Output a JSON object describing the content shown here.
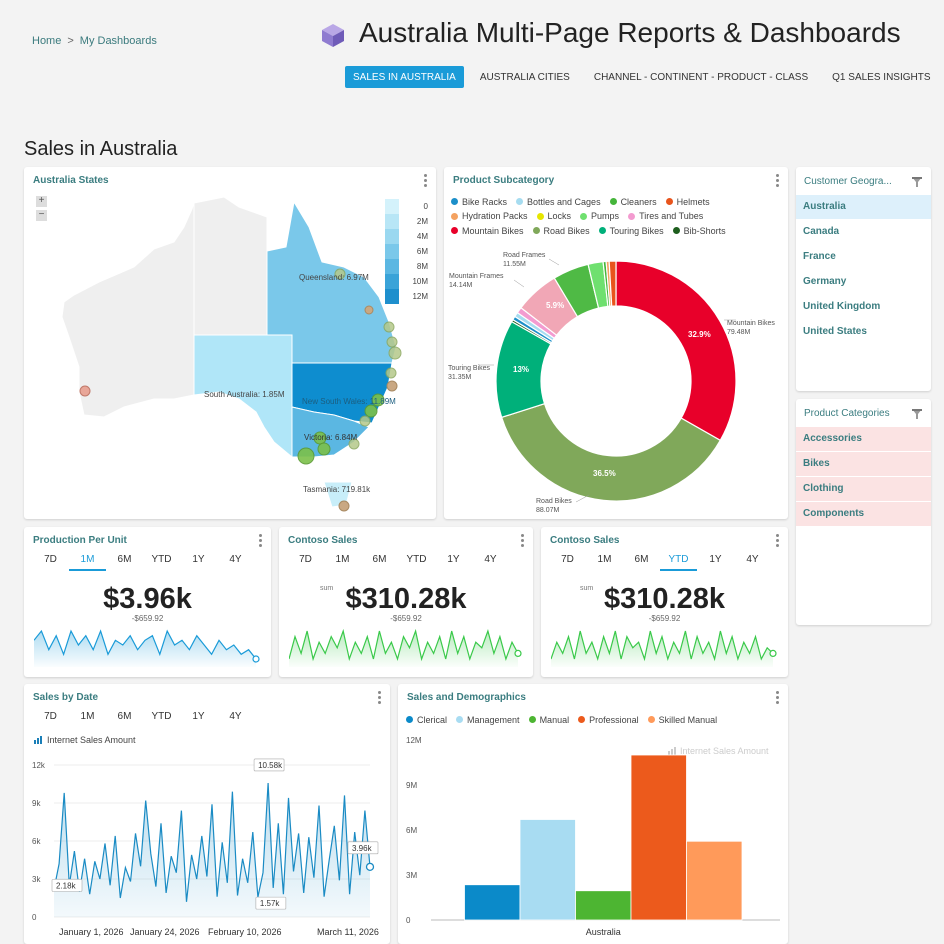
{
  "breadcrumb": {
    "home": "Home",
    "sep": ">",
    "current": "My Dashboards"
  },
  "app": {
    "title": "Australia Multi-Page Reports & Dashboards",
    "logo_icon": "cube-icon"
  },
  "tabs": [
    {
      "label": "SALES IN AUSTRALIA",
      "active": true
    },
    {
      "label": "AUSTRALIA CITIES",
      "active": false
    },
    {
      "label": "CHANNEL - CONTINENT - PRODUCT - CLASS",
      "active": false
    },
    {
      "label": "Q1 SALES INSIGHTS",
      "active": false
    }
  ],
  "page": {
    "title": "Sales in Australia"
  },
  "map_card": {
    "title": "Australia States",
    "zoom_in": "+",
    "zoom_out": "−",
    "scale_labels": [
      "0",
      "2M",
      "4M",
      "6M",
      "8M",
      "10M",
      "12M"
    ],
    "scale_colors": [
      "#d4f2fb",
      "#b8e6f6",
      "#9ad8f0",
      "#7ac8ea",
      "#5bb7e2",
      "#3aa3d8",
      "#1e8fcd"
    ],
    "state_labels": [
      "Queensland: 6.97M",
      "South Australia: 1.85M",
      "New South Wales: 11.89M",
      "Victoria: 6.84M",
      "Tasmania: 719.81k"
    ]
  },
  "subcategory_card": {
    "title": "Product Subcategory",
    "legend": [
      {
        "name": "Bike Racks",
        "color": "#1c8fc9"
      },
      {
        "name": "Bottles and Cages",
        "color": "#a6dcf0"
      },
      {
        "name": "Cleaners",
        "color": "#45b53a"
      },
      {
        "name": "Helmets",
        "color": "#e8541c"
      },
      {
        "name": "Hydration Packs",
        "color": "#f4a261"
      },
      {
        "name": "Locks",
        "color": "#e6e600"
      },
      {
        "name": "Pumps",
        "color": "#6fe06f"
      },
      {
        "name": "Tires and Tubes",
        "color": "#f39bd0"
      },
      {
        "name": "Mountain Bikes",
        "color": "#e8002a"
      },
      {
        "name": "Road Bikes",
        "color": "#80a85a"
      },
      {
        "name": "Touring Bikes",
        "color": "#00b07a"
      },
      {
        "name": "Bib-Shorts",
        "color": "#1e5e1e"
      }
    ],
    "callouts": [
      {
        "name": "Road Frames",
        "value": "11.55M"
      },
      {
        "name": "Mountain Frames",
        "value": "14.14M"
      },
      {
        "name": "Mountain Bikes",
        "value": "79.48M"
      },
      {
        "name": "Touring Bikes",
        "value": "31.35M"
      },
      {
        "name": "Road Bikes",
        "value": "88.07M"
      }
    ],
    "slice_labels": [
      "32.9%",
      "36.5%",
      "13%",
      "5.9%"
    ]
  },
  "kpi_cards": [
    {
      "title": "Production Per Unit",
      "periods": [
        "7D",
        "1M",
        "6M",
        "YTD",
        "1Y",
        "4Y"
      ],
      "active_period": "1M",
      "sum_label": "",
      "value": "$3.96k",
      "delta": "-$659.92",
      "color": "#1a9bd8"
    },
    {
      "title": "Contoso Sales",
      "periods": [
        "7D",
        "1M",
        "6M",
        "YTD",
        "1Y",
        "4Y"
      ],
      "active_period": "",
      "sum_label": "sum",
      "value": "$310.28k",
      "delta": "-$659.92",
      "color": "#3ac94a"
    },
    {
      "title": "Contoso Sales",
      "periods": [
        "7D",
        "1M",
        "6M",
        "YTD",
        "1Y",
        "4Y"
      ],
      "active_period": "YTD",
      "sum_label": "sum",
      "value": "$310.28k",
      "delta": "-$659.92",
      "color": "#3ac94a"
    }
  ],
  "sales_by_date": {
    "title": "Sales by Date",
    "periods": [
      "7D",
      "1M",
      "6M",
      "YTD",
      "1Y",
      "4Y"
    ],
    "legend": "Internet Sales Amount",
    "callouts": [
      "10.58k",
      "2.18k",
      "1.57k",
      "3.96k"
    ]
  },
  "demographics": {
    "title": "Sales and Demographics",
    "watermark": "Internet Sales Amount"
  },
  "geo_filter": {
    "title": "Customer Geogra...",
    "items": [
      {
        "label": "Australia",
        "selected": true
      },
      {
        "label": "Canada",
        "selected": false
      },
      {
        "label": "France",
        "selected": false
      },
      {
        "label": "Germany",
        "selected": false
      },
      {
        "label": "United Kingdom",
        "selected": false
      },
      {
        "label": "United States",
        "selected": false
      }
    ]
  },
  "category_filter": {
    "title": "Product Categories",
    "items": [
      {
        "label": "Accessories",
        "selected": true
      },
      {
        "label": "Bikes",
        "selected": true
      },
      {
        "label": "Clothing",
        "selected": true
      },
      {
        "label": "Components",
        "selected": true
      }
    ]
  },
  "chart_data": [
    {
      "type": "line",
      "title": "Sales by Date",
      "series": [
        {
          "name": "Internet Sales Amount",
          "values": [
            2180,
            4200,
            9800,
            2500,
            5200,
            2000,
            4600,
            1800,
            4400,
            3000,
            5800,
            2500,
            6400,
            1500,
            3900,
            2800,
            6600,
            4000,
            9200,
            5000,
            2400,
            7400,
            1900,
            4800,
            3500,
            8400,
            1200,
            4900,
            3000,
            6400,
            3200,
            8900,
            1600,
            5900,
            2700,
            9900,
            1700,
            4600,
            2700,
            6700,
            1570,
            3500,
            10580,
            2300,
            7400,
            1800,
            9400,
            3600,
            6600,
            1900,
            6300,
            3100,
            8800,
            1600,
            4500,
            7200,
            2900,
            9600,
            1800,
            6700,
            3300,
            8400,
            3960
          ]
        }
      ],
      "x_tick_labels": [
        "January 1, 2026",
        "January 24, 2026",
        "February 10, 2026",
        "March 11, 2026"
      ],
      "y_tick_labels": [
        "0",
        "3k",
        "6k",
        "9k",
        "12k"
      ],
      "ylim": [
        0,
        12000
      ]
    },
    {
      "type": "bar",
      "title": "Sales and Demographics",
      "categories": [
        "Australia"
      ],
      "series": [
        {
          "name": "Clerical",
          "values": [
            2350000
          ],
          "color": "#0b8ac9"
        },
        {
          "name": "Management",
          "values": [
            6700000
          ],
          "color": "#a8dcf2"
        },
        {
          "name": "Manual",
          "values": [
            1950000
          ],
          "color": "#4db532"
        },
        {
          "name": "Professional",
          "values": [
            11000000
          ],
          "color": "#ec5a1c"
        },
        {
          "name": "Skilled Manual",
          "values": [
            5250000
          ],
          "color": "#ff9a5a"
        }
      ],
      "y_tick_labels": [
        "0",
        "3M",
        "6M",
        "9M",
        "12M"
      ],
      "ylim": [
        0,
        12000000
      ]
    },
    {
      "type": "pie",
      "title": "Product Subcategory",
      "slices": [
        {
          "name": "Mountain Bikes",
          "value": 32.9,
          "color": "#e8002a"
        },
        {
          "name": "Road Bikes",
          "value": 36.5,
          "color": "#80a85a"
        },
        {
          "name": "Touring Bikes",
          "value": 13.0,
          "color": "#00b07a"
        },
        {
          "name": "Bib-Shorts",
          "value": 0.3,
          "color": "#1e5e1e"
        },
        {
          "name": "Bike Racks",
          "value": 0.5,
          "color": "#1c8fc9"
        },
        {
          "name": "Bottles and Cages",
          "value": 0.6,
          "color": "#a6dcf0"
        },
        {
          "name": "Tires and Tubes",
          "value": 0.8,
          "color": "#f39bd0"
        },
        {
          "name": "Mountain Frames",
          "value": 5.9,
          "color": "#f1a7b6"
        },
        {
          "name": "Road Frames",
          "value": 4.8,
          "color": "#4fba45"
        },
        {
          "name": "Pumps",
          "value": 2.0,
          "color": "#6fe06f"
        },
        {
          "name": "Cleaners",
          "value": 0.4,
          "color": "#45b53a"
        },
        {
          "name": "Hydration Packs",
          "value": 0.4,
          "color": "#f4a261"
        },
        {
          "name": "Helmets",
          "value": 0.9,
          "color": "#e8541c"
        }
      ]
    },
    {
      "type": "line",
      "title": "Production Per Unit",
      "values": [
        5,
        7,
        3,
        6,
        2,
        7,
        4,
        6,
        3,
        7,
        2,
        5,
        4,
        6,
        3,
        5,
        6,
        2,
        7,
        4,
        5,
        3,
        6,
        4,
        2,
        5,
        3,
        4,
        2,
        3,
        1
      ]
    },
    {
      "type": "line",
      "title": "Contoso Sales",
      "values": [
        2,
        6,
        3,
        7,
        2,
        5,
        3,
        6,
        4,
        7,
        2,
        5,
        3,
        6,
        2,
        7,
        3,
        5,
        2,
        6,
        4,
        7,
        2,
        5,
        3,
        6,
        2,
        7,
        3,
        6,
        2,
        5,
        4,
        7,
        3,
        6,
        2,
        5,
        3
      ]
    },
    {
      "type": "line",
      "title": "Contoso Sales",
      "values": [
        2,
        5,
        3,
        6,
        2,
        7,
        3,
        5,
        2,
        6,
        3,
        7,
        2,
        6,
        4,
        5,
        2,
        7,
        3,
        6,
        2,
        5,
        3,
        7,
        2,
        6,
        3,
        5,
        2,
        7,
        3,
        6,
        2,
        5,
        3,
        6,
        2,
        4,
        3
      ]
    }
  ]
}
